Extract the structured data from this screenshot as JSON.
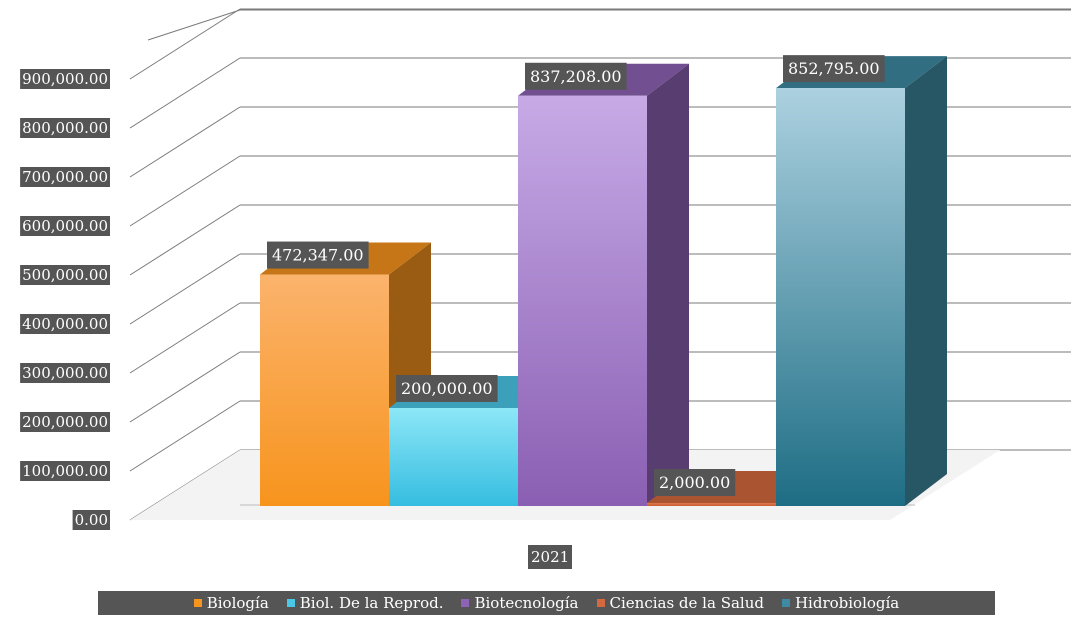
{
  "chart_data": {
    "type": "bar",
    "categories": [
      "2021"
    ],
    "series": [
      {
        "name": "Biología",
        "values": [
          472347.0
        ],
        "label": "472,347.00",
        "color": "#f7941d"
      },
      {
        "name": "Biol. De la Reprod.",
        "values": [
          200000.0
        ],
        "label": "200,000.00",
        "color": "#4bc8e8"
      },
      {
        "name": "Biotecnología",
        "values": [
          837208.0
        ],
        "label": "837,208.00",
        "color": "#8e63b5"
      },
      {
        "name": "Ciencias de la Salud",
        "values": [
          2000.0
        ],
        "label": "2,000.00",
        "color": "#d4693f"
      },
      {
        "name": "Hidrobiología",
        "values": [
          852795.0
        ],
        "label": "852,795.00",
        "color": "#3f8aa3"
      }
    ],
    "yticks": [
      "0.00",
      "100,000.00",
      "200,000.00",
      "300,000.00",
      "400,000.00",
      "500,000.00",
      "600,000.00",
      "700,000.00",
      "800,000.00",
      "900,000.00"
    ],
    "ylim": [
      0,
      900000
    ],
    "grid": true,
    "legend_position": "bottom",
    "projection": "3d-column"
  }
}
